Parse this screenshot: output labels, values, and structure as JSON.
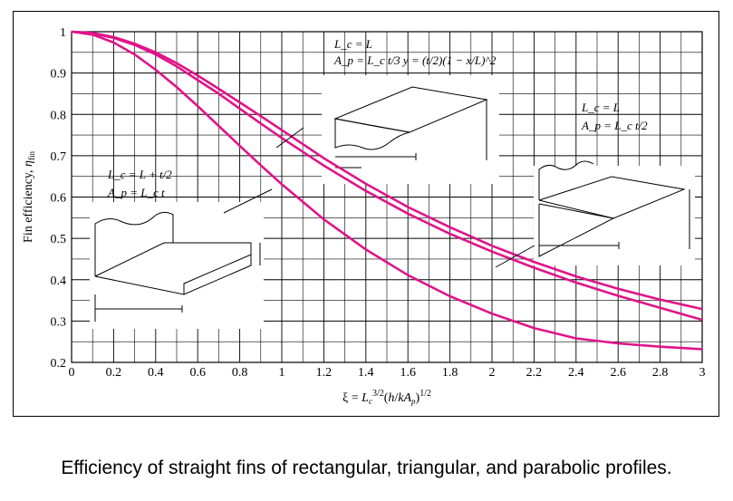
{
  "chart_data": {
    "type": "line",
    "xlabel": "ξ = L_c^{3/2}(h/kA_p)^{1/2}",
    "ylabel": "Fin efficiency, η_fin",
    "xlim": [
      0,
      3
    ],
    "ylim": [
      0.2,
      1
    ],
    "x_ticks": [
      "0",
      "0.2",
      "0.4",
      "0.6",
      "0.8",
      "1",
      "1.2",
      "1.4",
      "1.6",
      "1.8",
      "2",
      "2.2",
      "2.4",
      "2.6",
      "2.8",
      "3"
    ],
    "y_ticks": [
      "0.2",
      "0.3",
      "0.4",
      "0.5",
      "0.6",
      "0.7",
      "0.8",
      "0.9",
      "1"
    ],
    "grid": true,
    "line_color": "#e0148a",
    "series": [
      {
        "x": [
          0,
          0.1,
          0.2,
          0.3,
          0.4,
          0.5,
          0.6,
          0.7,
          0.8,
          0.9,
          1.0,
          1.2,
          1.4,
          1.6,
          1.8,
          2.0,
          2.2,
          2.4,
          2.6,
          2.8,
          3.0
        ],
        "values": [
          1.0,
          0.997,
          0.987,
          0.971,
          0.95,
          0.924,
          0.894,
          0.862,
          0.829,
          0.796,
          0.762,
          0.694,
          0.632,
          0.576,
          0.527,
          0.482,
          0.443,
          0.408,
          0.378,
          0.352,
          0.329
        ]
      },
      {
        "x": [
          0,
          0.1,
          0.2,
          0.3,
          0.4,
          0.5,
          0.6,
          0.7,
          0.8,
          0.9,
          1.0,
          1.2,
          1.4,
          1.6,
          1.8,
          2.0,
          2.2,
          2.4,
          2.6,
          2.8,
          3.0
        ],
        "values": [
          1.0,
          0.996,
          0.985,
          0.968,
          0.945,
          0.916,
          0.883,
          0.85,
          0.814,
          0.778,
          0.743,
          0.676,
          0.615,
          0.56,
          0.511,
          0.468,
          0.429,
          0.393,
          0.361,
          0.332,
          0.303
        ]
      },
      {
        "x": [
          0,
          0.1,
          0.2,
          0.3,
          0.4,
          0.5,
          0.6,
          0.7,
          0.8,
          0.9,
          1.0,
          1.2,
          1.4,
          1.6,
          1.8,
          2.0,
          2.2,
          2.4,
          2.6,
          2.8,
          3.0
        ],
        "values": [
          1.0,
          0.993,
          0.974,
          0.945,
          0.908,
          0.866,
          0.82,
          0.772,
          0.724,
          0.677,
          0.631,
          0.546,
          0.473,
          0.411,
          0.36,
          0.318,
          0.283,
          0.258,
          0.246,
          0.238,
          0.232
        ]
      }
    ],
    "annotations": {
      "parabolic": [
        "L_c = L",
        "A_p = L_c t/3   y = (t/2)(1 − x/L)^2"
      ],
      "triangular": [
        "L_c = L",
        "A_p = L_c t/2"
      ],
      "rectangular": [
        "L_c = L + t/2",
        "A_p = L_c t"
      ]
    }
  },
  "caption": "Efficiency of straight fins of rectangular, triangular, and parabolic profiles."
}
